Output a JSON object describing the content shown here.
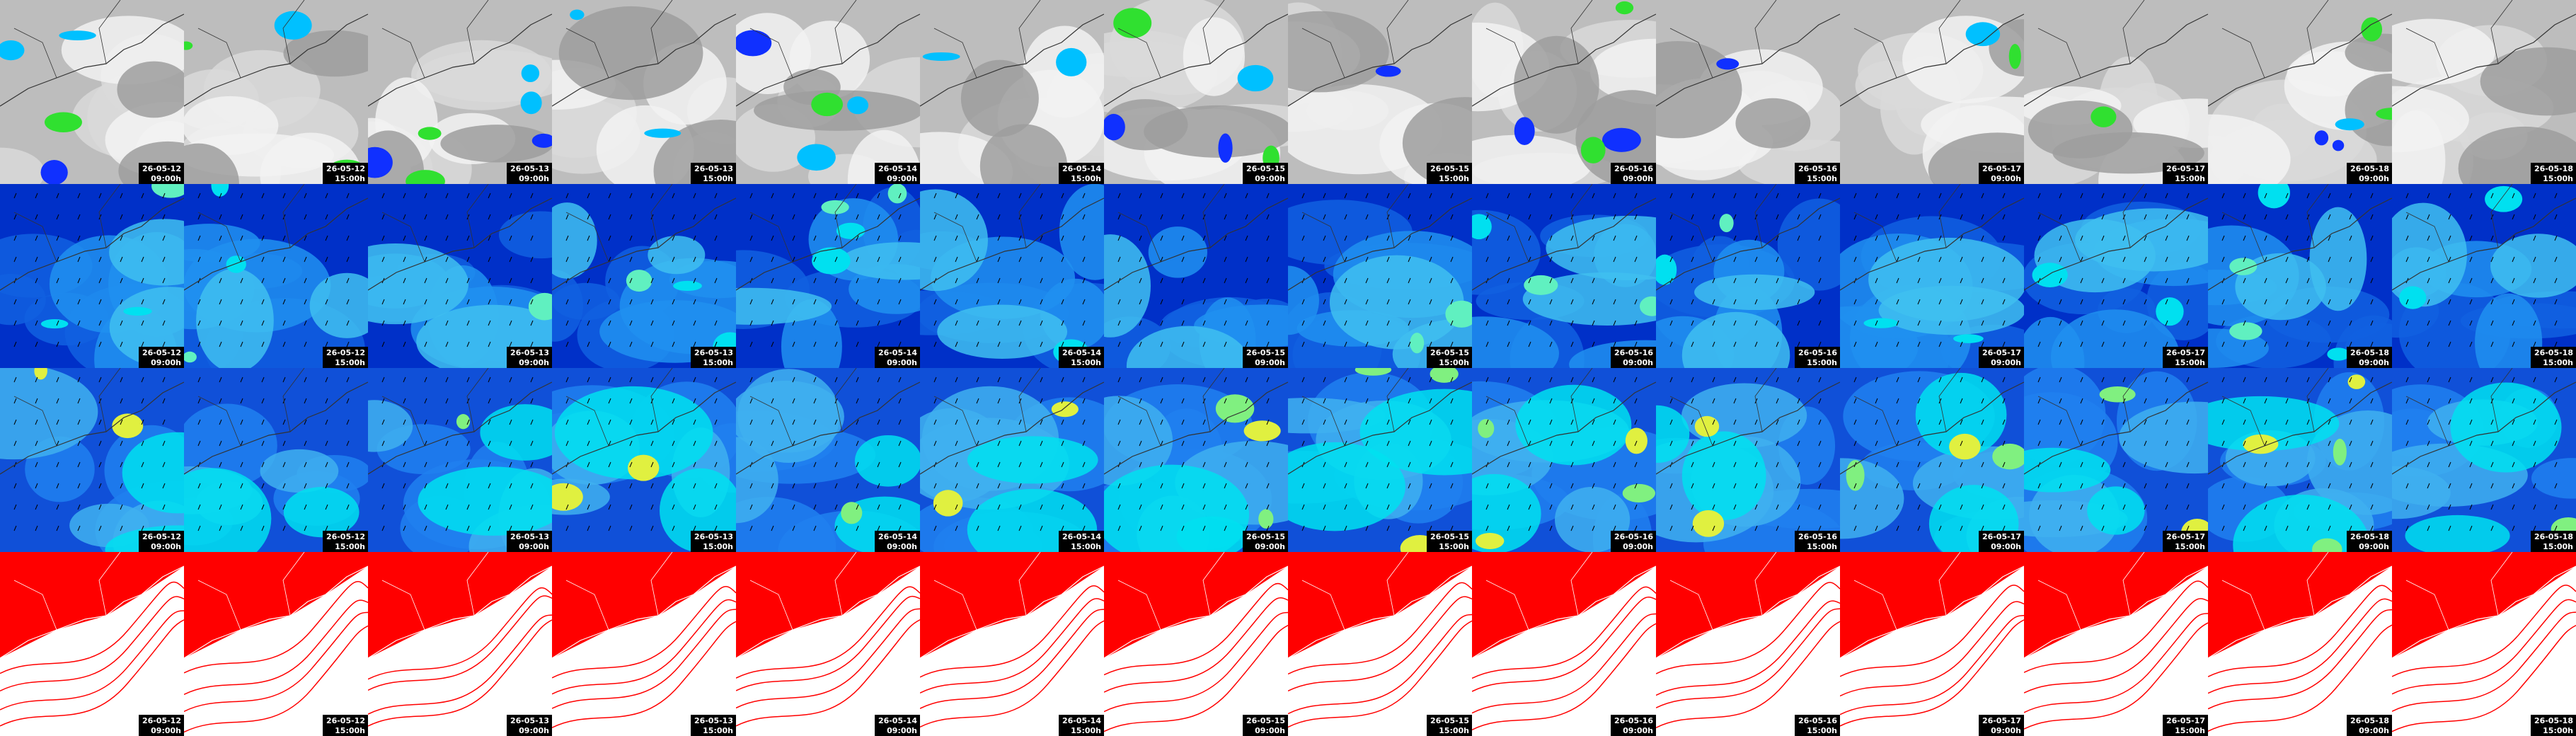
{
  "columns": [
    {
      "date": "26-05-12",
      "time": "09:00h"
    },
    {
      "date": "26-05-12",
      "time": "15:00h"
    },
    {
      "date": "26-05-13",
      "time": "09:00h"
    },
    {
      "date": "26-05-13",
      "time": "15:00h"
    },
    {
      "date": "26-05-14",
      "time": "09:00h"
    },
    {
      "date": "26-05-14",
      "time": "15:00h"
    },
    {
      "date": "26-05-15",
      "time": "09:00h"
    },
    {
      "date": "26-05-15",
      "time": "15:00h"
    },
    {
      "date": "26-05-16",
      "time": "09:00h"
    },
    {
      "date": "26-05-16",
      "time": "15:00h"
    },
    {
      "date": "26-05-17",
      "time": "09:00h"
    },
    {
      "date": "26-05-17",
      "time": "15:00h"
    },
    {
      "date": "26-05-18",
      "time": "09:00h"
    },
    {
      "date": "26-05-18",
      "time": "15:00h"
    }
  ]
}
